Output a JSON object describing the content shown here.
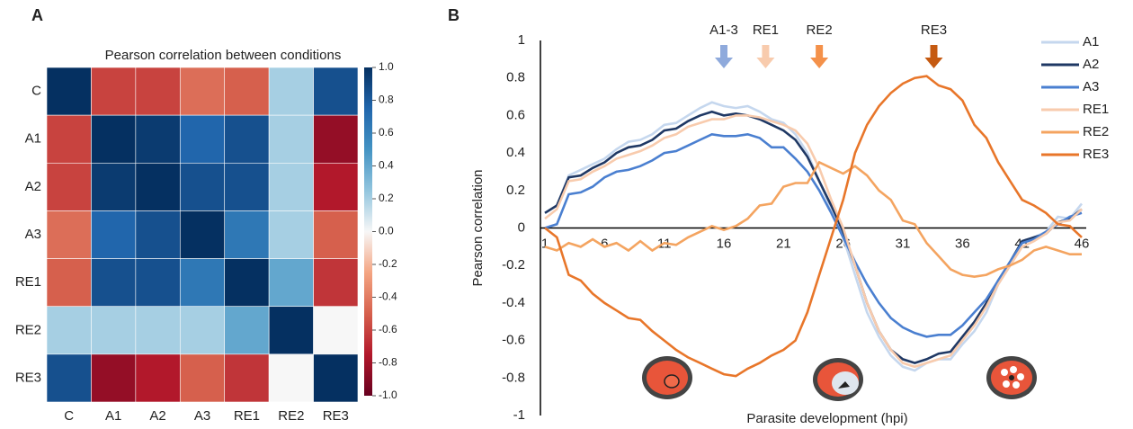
{
  "chart_data": [
    {
      "type": "heatmap",
      "panel_label": "A",
      "title": "Pearson correlation between  conditions",
      "categories": [
        "C",
        "A1",
        "A2",
        "A3",
        "RE1",
        "RE2",
        "RE3"
      ],
      "values": [
        [
          1,
          -0.6,
          -0.6,
          -0.45,
          -0.5,
          0.2,
          0.85
        ],
        [
          -0.6,
          1,
          0.95,
          0.75,
          0.85,
          0.2,
          -0.85
        ],
        [
          -0.6,
          0.95,
          1,
          0.85,
          0.85,
          0.2,
          -0.75
        ],
        [
          -0.45,
          0.75,
          0.85,
          1,
          0.65,
          0.2,
          -0.5
        ],
        [
          -0.5,
          0.85,
          0.85,
          0.65,
          1,
          0.4,
          -0.65
        ],
        [
          0.2,
          0.2,
          0.2,
          0.2,
          0.4,
          1,
          0
        ],
        [
          0.85,
          -0.85,
          -0.75,
          -0.5,
          -0.65,
          0,
          1
        ]
      ],
      "zlim": [
        -1,
        1
      ],
      "zticks": [
        {
          "value": 1,
          "label": "1.0"
        },
        0.8,
        0.6,
        0.4,
        0.2,
        {
          "value": 0,
          "label": "0.0"
        },
        -0.2,
        -0.4,
        -0.6,
        -0.8,
        {
          "value": -1,
          "label": "-1.0"
        }
      ],
      "colorscale": [
        "#67001f",
        "#b2182b",
        "#d6604d",
        "#f4a582",
        "#f7f7f7",
        "#92c5de",
        "#4393c3",
        "#2166ac",
        "#053061"
      ]
    },
    {
      "type": "line",
      "panel_label": "B",
      "y_label": "Pearson correlation",
      "x_label": "Parasite development  (hpi)",
      "x": [
        1,
        2,
        3,
        4,
        5,
        6,
        7,
        8,
        9,
        10,
        11,
        12,
        13,
        14,
        15,
        16,
        17,
        18,
        19,
        20,
        21,
        22,
        23,
        24,
        25,
        26,
        27,
        28,
        29,
        30,
        31,
        32,
        33,
        34,
        35,
        36,
        37,
        38,
        39,
        40,
        41,
        42,
        43,
        44,
        45,
        46
      ],
      "series": [
        {
          "name": "A1",
          "color": "#c5d7ee",
          "values": [
            0.08,
            0.12,
            0.28,
            0.31,
            0.34,
            0.37,
            0.42,
            0.46,
            0.47,
            0.5,
            0.55,
            0.56,
            0.6,
            0.64,
            0.67,
            0.65,
            0.64,
            0.65,
            0.62,
            0.58,
            0.56,
            0.5,
            0.4,
            0.25,
            0.1,
            -0.05,
            -0.25,
            -0.45,
            -0.58,
            -0.68,
            -0.74,
            -0.76,
            -0.72,
            -0.7,
            -0.7,
            -0.62,
            -0.55,
            -0.45,
            -0.3,
            -0.2,
            -0.08,
            -0.05,
            -0.02,
            0.06,
            0.05,
            0.13
          ]
        },
        {
          "name": "A2",
          "color": "#1f3864",
          "values": [
            0.08,
            0.12,
            0.27,
            0.28,
            0.32,
            0.35,
            0.4,
            0.43,
            0.44,
            0.47,
            0.52,
            0.53,
            0.57,
            0.6,
            0.62,
            0.6,
            0.61,
            0.6,
            0.58,
            0.55,
            0.52,
            0.47,
            0.38,
            0.25,
            0.12,
            -0.02,
            -0.2,
            -0.4,
            -0.55,
            -0.65,
            -0.7,
            -0.72,
            -0.7,
            -0.67,
            -0.66,
            -0.58,
            -0.5,
            -0.4,
            -0.28,
            -0.18,
            -0.07,
            -0.05,
            -0.03,
            0.03,
            0.05,
            0.1
          ]
        },
        {
          "name": "A3",
          "color": "#4a7fd0",
          "values": [
            0,
            0.02,
            0.18,
            0.19,
            0.22,
            0.27,
            0.3,
            0.31,
            0.33,
            0.36,
            0.4,
            0.41,
            0.44,
            0.47,
            0.5,
            0.49,
            0.49,
            0.5,
            0.48,
            0.43,
            0.43,
            0.37,
            0.3,
            0.2,
            0.08,
            -0.05,
            -0.18,
            -0.3,
            -0.4,
            -0.48,
            -0.53,
            -0.56,
            -0.58,
            -0.57,
            -0.57,
            -0.52,
            -0.45,
            -0.38,
            -0.28,
            -0.18,
            -0.08,
            -0.06,
            -0.02,
            0.02,
            0.06,
            0.08
          ]
        },
        {
          "name": "RE1",
          "color": "#f8cbad",
          "values": [
            0.05,
            0.1,
            0.25,
            0.26,
            0.3,
            0.33,
            0.37,
            0.39,
            0.41,
            0.44,
            0.48,
            0.5,
            0.54,
            0.56,
            0.58,
            0.58,
            0.6,
            0.6,
            0.59,
            0.57,
            0.55,
            0.52,
            0.45,
            0.32,
            0.15,
            0,
            -0.2,
            -0.4,
            -0.55,
            -0.65,
            -0.72,
            -0.74,
            -0.72,
            -0.7,
            -0.68,
            -0.6,
            -0.52,
            -0.42,
            -0.3,
            -0.2,
            -0.1,
            -0.07,
            -0.03,
            0.03,
            0.04,
            0.1
          ]
        },
        {
          "name": "RE2",
          "color": "#f4a460",
          "values": [
            -0.1,
            -0.12,
            -0.08,
            -0.1,
            -0.06,
            -0.1,
            -0.08,
            -0.12,
            -0.07,
            -0.12,
            -0.08,
            -0.09,
            -0.05,
            -0.02,
            0.01,
            -0.01,
            0.01,
            0.05,
            0.12,
            0.13,
            0.22,
            0.24,
            0.24,
            0.35,
            0.32,
            0.29,
            0.33,
            0.28,
            0.2,
            0.15,
            0.04,
            0.02,
            -0.08,
            -0.15,
            -0.22,
            -0.25,
            -0.26,
            -0.25,
            -0.22,
            -0.2,
            -0.17,
            -0.12,
            -0.1,
            -0.12,
            -0.14,
            -0.14
          ]
        },
        {
          "name": "RE3",
          "color": "#e8762a",
          "values": [
            0,
            -0.05,
            -0.25,
            -0.28,
            -0.35,
            -0.4,
            -0.44,
            -0.48,
            -0.49,
            -0.55,
            -0.6,
            -0.65,
            -0.69,
            -0.72,
            -0.75,
            -0.78,
            -0.79,
            -0.75,
            -0.72,
            -0.68,
            -0.65,
            -0.6,
            -0.45,
            -0.25,
            -0.05,
            0.15,
            0.4,
            0.55,
            0.65,
            0.72,
            0.77,
            0.8,
            0.81,
            0.76,
            0.74,
            0.68,
            0.55,
            0.48,
            0.35,
            0.25,
            0.15,
            0.12,
            0.08,
            0.02,
            0.01,
            -0.05
          ]
        }
      ],
      "xlim": [
        1,
        46
      ],
      "xticks": [
        1,
        6,
        11,
        16,
        21,
        26,
        31,
        36,
        41,
        46
      ],
      "ylim": [
        -1,
        1
      ],
      "yticks": [
        1,
        0.8,
        0.6,
        0.4,
        0.2,
        0,
        -0.2,
        -0.4,
        -0.6,
        -0.8,
        -1
      ],
      "grid": false,
      "legend": "upper right",
      "annotations": [
        {
          "text": "A1-3",
          "x": 16,
          "color": "#8faadc"
        },
        {
          "text": "RE1",
          "x": 19.5,
          "color": "#f8cbad"
        },
        {
          "text": "RE2",
          "x": 24,
          "color": "#f4914a"
        },
        {
          "text": "RE3",
          "x": 33.6,
          "color": "#c55a11"
        }
      ]
    }
  ]
}
